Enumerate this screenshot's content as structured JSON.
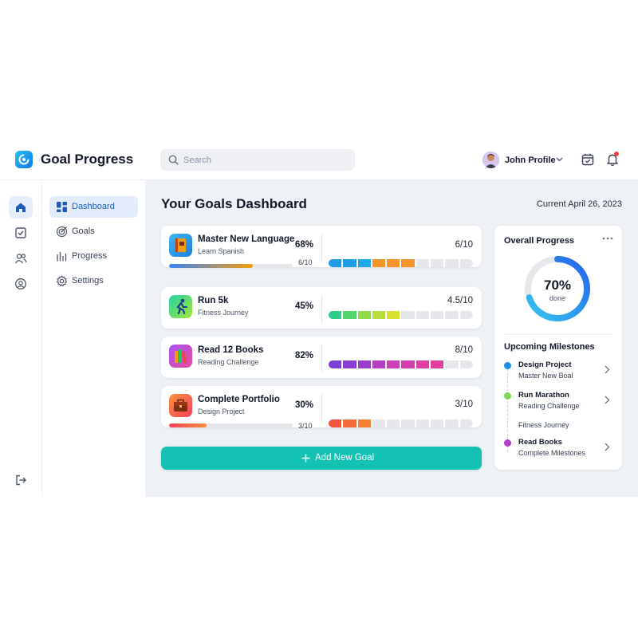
{
  "header": {
    "app_title": "Goal Progress",
    "search_placeholder": "Search",
    "profile_name": "John Profile"
  },
  "nav": {
    "items": [
      {
        "label": "Dashboard",
        "icon": "dashboard-icon",
        "active": true
      },
      {
        "label": "Goals",
        "icon": "target-icon",
        "active": false
      },
      {
        "label": "Progress",
        "icon": "bar-chart-icon",
        "active": false
      },
      {
        "label": "Settings",
        "icon": "gear-icon",
        "active": false
      }
    ]
  },
  "rail": {
    "icons": [
      "home-icon",
      "checkbox-icon",
      "users-icon",
      "user-circle-icon"
    ],
    "logout_icon": "logout-icon"
  },
  "main": {
    "title": "Your Goals Dashboard",
    "date": "Current April 26, 2023",
    "goals": [
      {
        "name": "Master New Language",
        "subtitle": "Learn Spanish",
        "percent": "68%",
        "count": "6/10",
        "progress": 0.68,
        "done": 6,
        "total": 10,
        "icon": "book-icon"
      },
      {
        "name": "Run 5k",
        "subtitle": "Fitness Journey",
        "percent": "45%",
        "count": "4.5/10",
        "progress": 0.45,
        "done": 4.5,
        "total": 10,
        "icon": "runner-icon"
      },
      {
        "name": "Read 12 Books",
        "subtitle": "Reading Challenge",
        "percent": "82%",
        "count": "8/10",
        "progress": 0.82,
        "done": 8,
        "total": 10,
        "icon": "books-icon"
      },
      {
        "name": "Complete Portfolio",
        "subtitle": "Design Project",
        "percent": "30%",
        "count": "3/10",
        "progress": 0.3,
        "done": 3,
        "total": 10,
        "icon": "briefcase-icon"
      }
    ],
    "add_button": "Add New Goal"
  },
  "panel": {
    "title": "Overall Progress",
    "ring_value": "70%",
    "ring_label": "done",
    "ring_progress": 0.7,
    "milestones_title": "Upcoming Milestones",
    "milestones": [
      {
        "name": "Design Project",
        "subtitle": "Master New Boal",
        "color": "#1e90e8"
      },
      {
        "name": "Run Marathon",
        "subtitle": "Reading Challenge",
        "color": "#7ed957"
      },
      {
        "name": "Read Books",
        "subtitle": "Complete Milestones",
        "color": "#b23dc8"
      }
    ],
    "extra_line": "Fitness Journey"
  },
  "colors": {
    "accent": "#13c2b3",
    "primary": "#1e5bb8",
    "background": "#eef1f5"
  }
}
